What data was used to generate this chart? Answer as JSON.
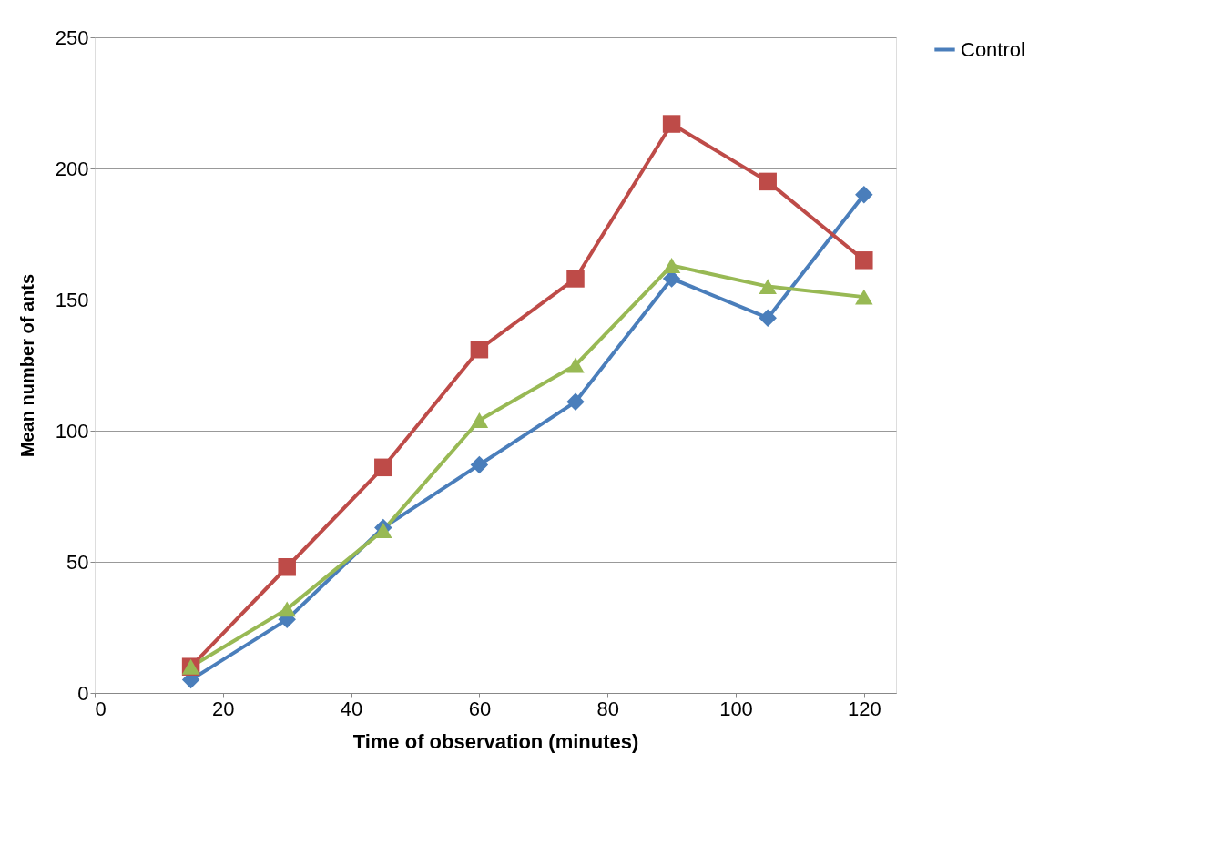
{
  "chart_data": {
    "type": "line",
    "xlabel": "Time of observation (minutes)",
    "ylabel": "Mean number of ants",
    "x": [
      15,
      30,
      45,
      60,
      75,
      90,
      105,
      120
    ],
    "series": [
      {
        "name": "Control",
        "color": "#4a7ebb",
        "marker": "diamond",
        "values": [
          5,
          28,
          63,
          87,
          111,
          158,
          143,
          190
        ]
      },
      {
        "color": "#be4b48",
        "marker": "square",
        "values": [
          10,
          48,
          86,
          131,
          158,
          217,
          195,
          165
        ]
      },
      {
        "color": "#98b954",
        "marker": "triangle",
        "values": [
          10,
          32,
          62,
          104,
          125,
          163,
          155,
          151
        ]
      }
    ],
    "xlim": [
      0,
      125
    ],
    "xticks": [
      0,
      20,
      40,
      60,
      80,
      100,
      120
    ],
    "ylim": [
      0,
      250
    ],
    "yticks": [
      0,
      50,
      100,
      150,
      200,
      250
    ],
    "grid": "y",
    "legend": "right",
    "line_style": "solid"
  }
}
